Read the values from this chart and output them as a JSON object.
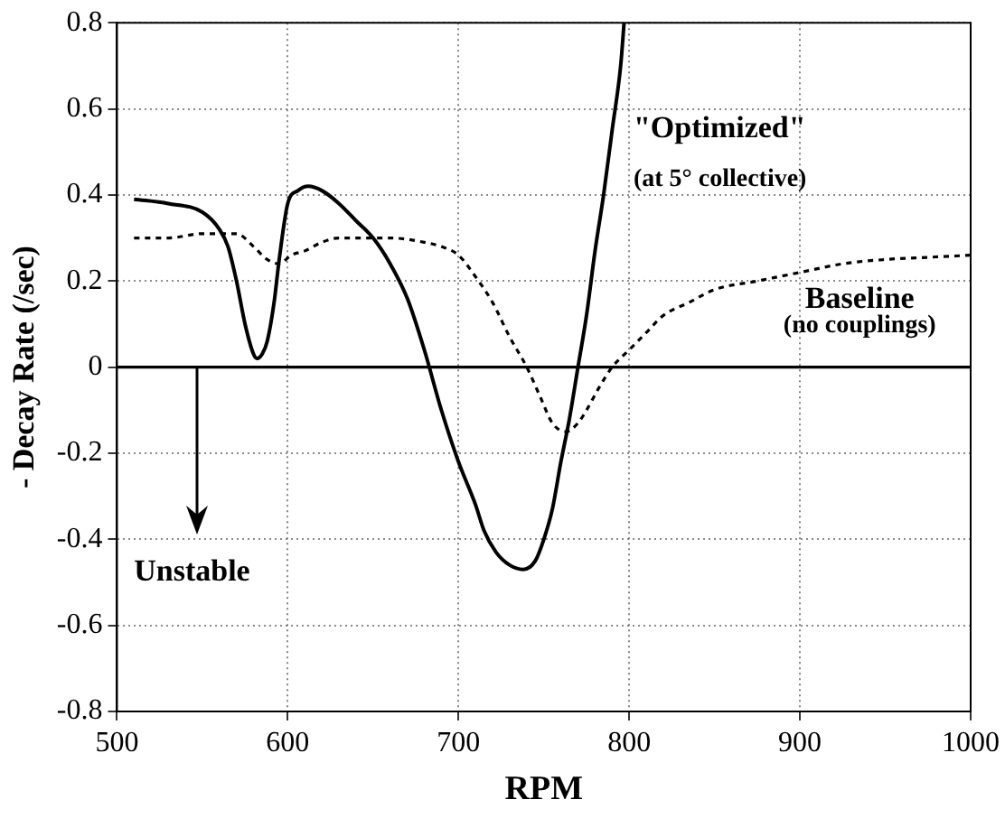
{
  "chart_data": {
    "type": "line",
    "xlabel": "RPM",
    "ylabel": "- Decay Rate (/sec)",
    "xlim": [
      500,
      1000
    ],
    "xticks": [
      500,
      600,
      700,
      800,
      900,
      1000
    ],
    "ylim": [
      -0.8,
      0.8
    ],
    "yticks": [
      -0.8,
      -0.6,
      -0.4,
      -0.2,
      0,
      0.2,
      0.4,
      0.6,
      0.8
    ],
    "grid": true,
    "legend": false,
    "marker": "none",
    "ref_lines": [
      {
        "axis": "y",
        "value": 0,
        "color": "#000000",
        "line_style": "solid"
      }
    ],
    "annotations": [
      "\"Optimized\"",
      "(at 5° collective)",
      "Baseline",
      "(no couplings)",
      {
        "text": "Unstable",
        "x": 547,
        "y": 0
      }
    ],
    "series": [
      {
        "color": "#000000",
        "line_style": "solid",
        "x": [
          510,
          530,
          550,
          560,
          565,
          570,
          575,
          580,
          582,
          585,
          588,
          592,
          595,
          600,
          606,
          612,
          620,
          630,
          640,
          650,
          660,
          670,
          680,
          690,
          700,
          710,
          715,
          722,
          730,
          738,
          745,
          750,
          755,
          760,
          765,
          770,
          775,
          780,
          785,
          790,
          795,
          797
        ],
        "values": [
          0.39,
          0.38,
          0.36,
          0.32,
          0.28,
          0.2,
          0.1,
          0.03,
          0.02,
          0.03,
          0.06,
          0.15,
          0.25,
          0.38,
          0.41,
          0.42,
          0.41,
          0.38,
          0.34,
          0.3,
          0.24,
          0.16,
          0.04,
          -0.1,
          -0.22,
          -0.32,
          -0.38,
          -0.43,
          -0.46,
          -0.47,
          -0.45,
          -0.4,
          -0.33,
          -0.22,
          -0.12,
          0,
          0.12,
          0.27,
          0.4,
          0.55,
          0.7,
          0.8
        ]
      },
      {
        "color": "#000000",
        "line_style": "dashed",
        "x": [
          510,
          530,
          550,
          570,
          580,
          588,
          595,
          602,
          610,
          620,
          630,
          645,
          660,
          680,
          690,
          700,
          710,
          720,
          730,
          740,
          748,
          755,
          763,
          770,
          775,
          782,
          790,
          800,
          810,
          820,
          835,
          850,
          875,
          900,
          925,
          950,
          975,
          1000
        ],
        "values": [
          0.3,
          0.3,
          0.31,
          0.31,
          0.28,
          0.25,
          0.24,
          0.26,
          0.27,
          0.29,
          0.3,
          0.3,
          0.3,
          0.29,
          0.28,
          0.26,
          0.21,
          0.15,
          0.07,
          0,
          -0.07,
          -0.13,
          -0.15,
          -0.13,
          -0.1,
          -0.05,
          0,
          0.04,
          0.08,
          0.12,
          0.15,
          0.18,
          0.2,
          0.22,
          0.24,
          0.25,
          0.255,
          0.26
        ]
      }
    ]
  }
}
